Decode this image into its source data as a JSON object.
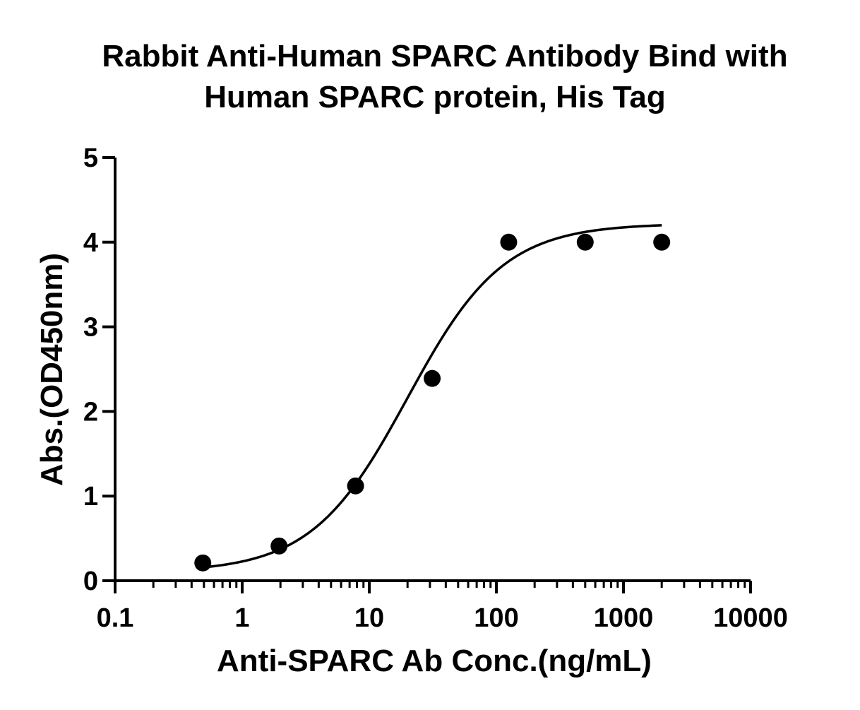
{
  "chart_data": {
    "type": "scatter",
    "title_lines": [
      "Rabbit Anti-Human SPARC Antibody Bind with",
      "Human SPARC protein,  His Tag"
    ],
    "xlabel": "Anti-SPARC Ab Conc.(ng/mL)",
    "ylabel": "Abs.(OD450nm)",
    "x_scale": "log",
    "xlim": [
      0.1,
      10000
    ],
    "ylim": [
      0,
      5
    ],
    "x_ticks": [
      {
        "value": 0.1,
        "label": "0.1"
      },
      {
        "value": 1,
        "label": "1"
      },
      {
        "value": 10,
        "label": "10"
      },
      {
        "value": 100,
        "label": "100"
      },
      {
        "value": 1000,
        "label": "1000"
      },
      {
        "value": 10000,
        "label": "10000"
      }
    ],
    "y_ticks": [
      {
        "value": 0,
        "label": "0"
      },
      {
        "value": 1,
        "label": "1"
      },
      {
        "value": 2,
        "label": "2"
      },
      {
        "value": 3,
        "label": "3"
      },
      {
        "value": 4,
        "label": "4"
      },
      {
        "value": 5,
        "label": "5"
      }
    ],
    "grid": false,
    "legend": "none",
    "series": [
      {
        "points": [
          {
            "x": 0.49,
            "y": 0.21
          },
          {
            "x": 1.95,
            "y": 0.41
          },
          {
            "x": 7.8,
            "y": 1.12
          },
          {
            "x": 31.25,
            "y": 2.39
          },
          {
            "x": 125,
            "y": 4.0
          },
          {
            "x": 500,
            "y": 4.0
          },
          {
            "x": 2000,
            "y": 4.0
          }
        ],
        "fit": {
          "model": "4PL",
          "bottom": 0.1,
          "top": 4.22,
          "ec50": 20,
          "hill": 1.15,
          "x_range": [
            0.49,
            2000
          ]
        },
        "color": "#000000"
      }
    ]
  }
}
